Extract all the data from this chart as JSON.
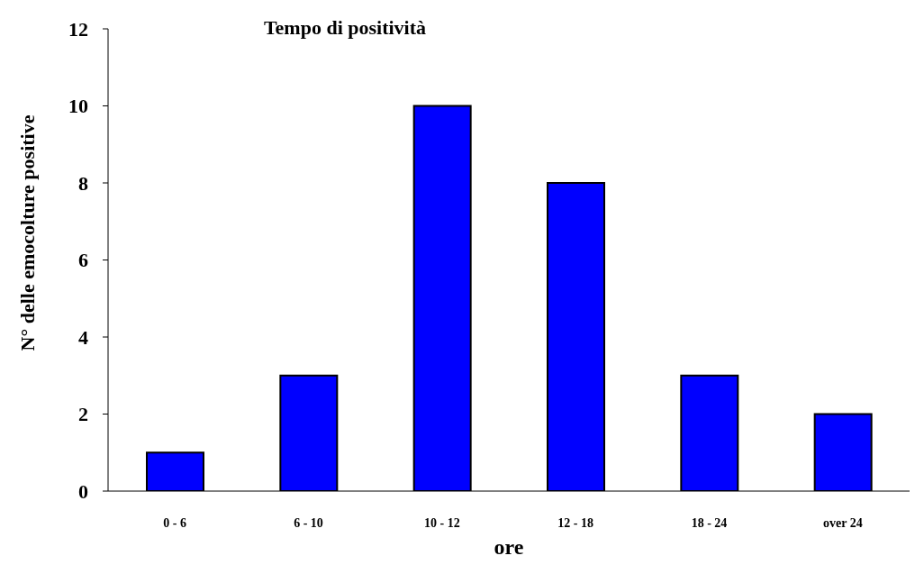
{
  "chart_data": {
    "type": "bar",
    "title": "Tempo di positività",
    "xlabel": "ore",
    "ylabel": "N° delle emocolture positive",
    "categories": [
      "0 - 6",
      "6 - 10",
      "10 - 12",
      "12 - 18",
      "18 - 24",
      "over  24"
    ],
    "values": [
      1,
      3,
      10,
      8,
      3,
      2
    ],
    "color": "#0000ff",
    "ylim": [
      0,
      12
    ],
    "yticks": [
      0,
      2,
      4,
      6,
      8,
      10,
      12
    ],
    "grid": false,
    "legend": false
  }
}
